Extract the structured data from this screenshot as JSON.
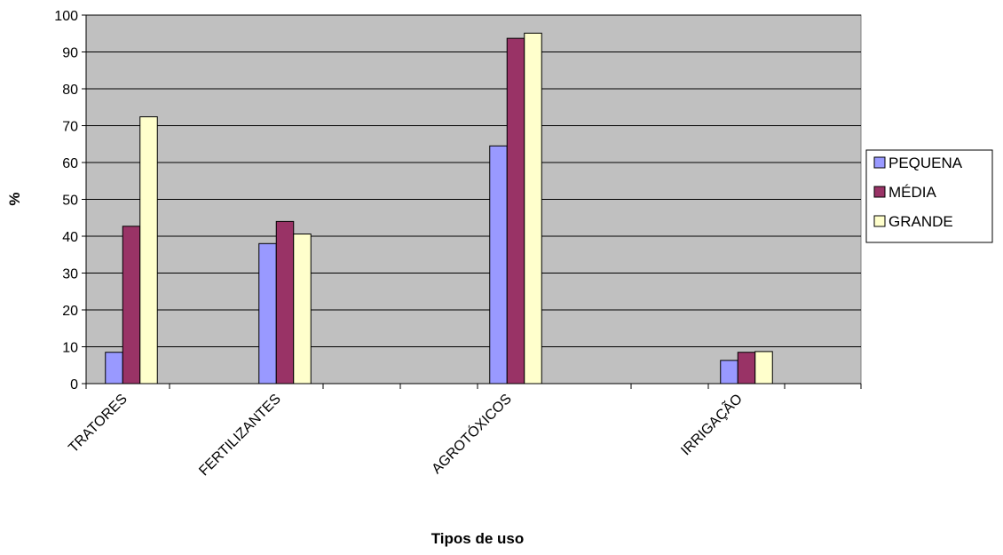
{
  "chart_data": {
    "type": "bar",
    "title": "",
    "xlabel": "Tipos de uso",
    "ylabel": "%",
    "ylim": [
      0,
      100
    ],
    "yticks": [
      0,
      10,
      20,
      30,
      40,
      50,
      60,
      70,
      80,
      90,
      100
    ],
    "grid": true,
    "legend_position": "right",
    "categories": [
      "TRATORES",
      "FERTILIZANTES",
      "AGROTÓXICOS",
      "IRRIGAÇÃO"
    ],
    "series": [
      {
        "name": "PEQUENA",
        "values": [
          8.5,
          38,
          64.5,
          6.3
        ],
        "color": "#9999ff"
      },
      {
        "name": "MÉDIA",
        "values": [
          42.7,
          44,
          93.7,
          8.5
        ],
        "color": "#993366"
      },
      {
        "name": "GRANDE",
        "values": [
          72.4,
          40.6,
          95.1,
          8.7
        ],
        "color": "#ffffcc"
      }
    ],
    "plot_background": "#c0c0c0"
  }
}
